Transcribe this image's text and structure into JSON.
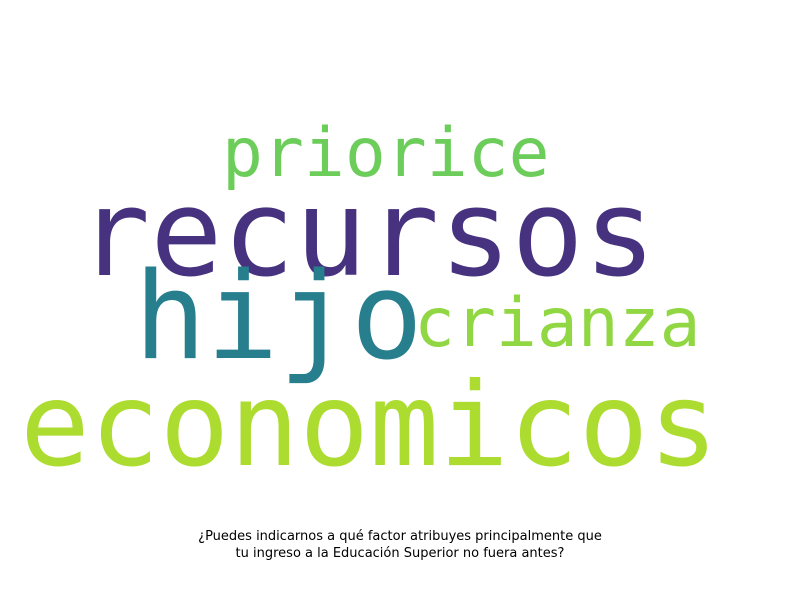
{
  "wordcloud": {
    "words": [
      {
        "text": "recursos",
        "color": "#46327e"
      },
      {
        "text": "hijo",
        "color": "#277f8e"
      },
      {
        "text": "economicos",
        "color": "#addc30"
      },
      {
        "text": "priorice",
        "color": "#6ccd5a"
      },
      {
        "text": "crianza",
        "color": "#90d743"
      }
    ]
  },
  "caption": {
    "line1": "¿Puedes indicarnos a qué factor atribuyes principalmente que",
    "line2": "tu ingreso a la Educación Superior no fuera antes?"
  }
}
